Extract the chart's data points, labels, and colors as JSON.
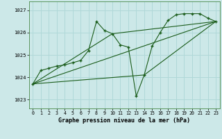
{
  "bg_color": "#cce8e8",
  "grid_color": "#b0d8d8",
  "line_color": "#1a5c1a",
  "title": "Graphe pression niveau de la mer (hPa)",
  "xlim": [
    -0.5,
    23.5
  ],
  "ylim": [
    1022.6,
    1027.4
  ],
  "yticks": [
    1023,
    1024,
    1025,
    1026,
    1027
  ],
  "xticks": [
    0,
    1,
    2,
    3,
    4,
    5,
    6,
    7,
    8,
    9,
    10,
    11,
    12,
    13,
    14,
    15,
    16,
    17,
    18,
    19,
    20,
    21,
    22,
    23
  ],
  "series1_x": [
    0,
    1,
    2,
    3,
    4,
    5,
    6,
    7,
    8,
    9,
    10,
    11,
    12,
    13,
    14,
    15,
    16,
    17,
    18,
    19,
    20,
    21,
    22,
    23
  ],
  "series1_y": [
    1023.7,
    1024.3,
    1024.4,
    1024.5,
    1024.55,
    1024.65,
    1024.75,
    1025.2,
    1026.5,
    1026.1,
    1025.95,
    1025.45,
    1025.35,
    1023.15,
    1024.1,
    1025.4,
    1026.0,
    1026.55,
    1026.8,
    1026.85,
    1026.85,
    1026.85,
    1026.65,
    1026.5
  ],
  "series2_x": [
    0,
    23
  ],
  "series2_y": [
    1023.7,
    1026.5
  ],
  "series3_x": [
    0,
    10,
    23
  ],
  "series3_y": [
    1023.7,
    1025.95,
    1026.5
  ],
  "series4_x": [
    0,
    14,
    23
  ],
  "series4_y": [
    1023.7,
    1024.1,
    1026.5
  ]
}
